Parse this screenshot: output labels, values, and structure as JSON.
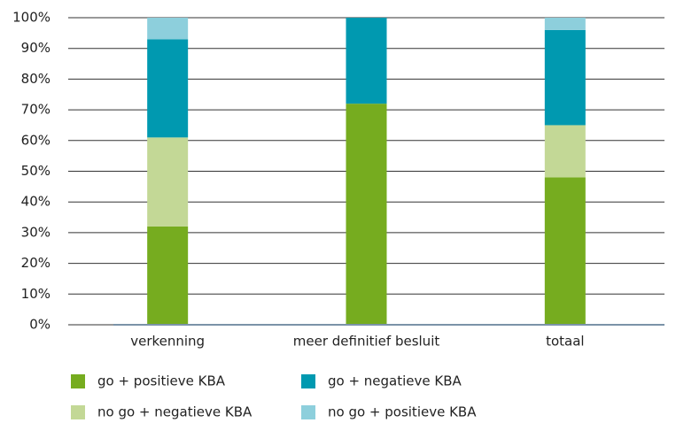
{
  "chart_data": {
    "type": "stacked_bar",
    "categories": [
      "verkenning",
      "meer definitief besluit",
      "totaal"
    ],
    "series": [
      {
        "name": "go + positieve KBA",
        "color": "#76ac1f",
        "values": [
          32,
          72,
          48
        ]
      },
      {
        "name": "no go + negatieve KBA",
        "color": "#c3d896",
        "values": [
          29,
          0,
          17
        ]
      },
      {
        "name": "go + negatieve KBA",
        "color": "#0099b0",
        "values": [
          32,
          28,
          31
        ]
      },
      {
        "name": "no go + positieve KBA",
        "color": "#8dcfdc",
        "values": [
          7,
          0,
          4
        ]
      }
    ],
    "ylim": [
      0,
      100
    ],
    "yticks": [
      {
        "value": 0,
        "label": "0%"
      },
      {
        "value": 10,
        "label": "10%"
      },
      {
        "value": 20,
        "label": "20%"
      },
      {
        "value": 30,
        "label": "30%"
      },
      {
        "value": 40,
        "label": "40%"
      },
      {
        "value": 50,
        "label": "50%"
      },
      {
        "value": 60,
        "label": "60%"
      },
      {
        "value": 70,
        "label": "70%"
      },
      {
        "value": 80,
        "label": "80%"
      },
      {
        "value": 90,
        "label": "90%"
      },
      {
        "value": 100,
        "label": "100%"
      }
    ],
    "grid": true
  }
}
